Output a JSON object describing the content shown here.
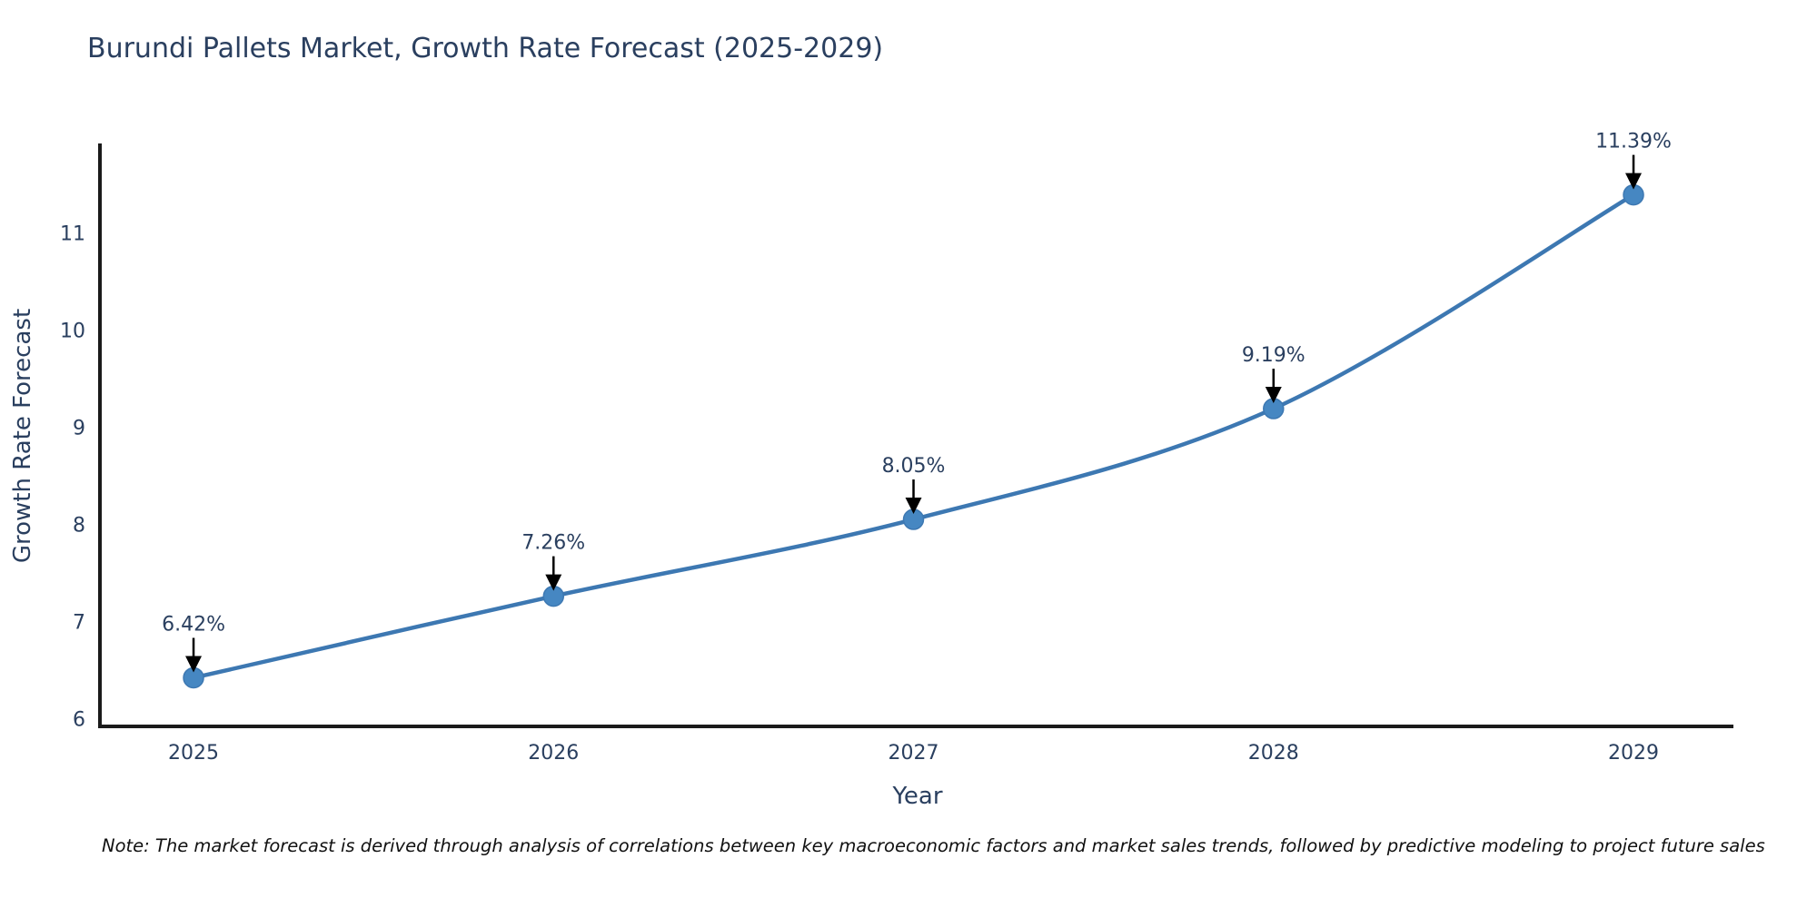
{
  "chart_data": {
    "type": "line",
    "title": "Burundi Pallets Market, Growth Rate Forecast (2025-2029)",
    "xlabel": "Year",
    "ylabel": "Growth Rate Forecast",
    "x": [
      2025,
      2026,
      2027,
      2028,
      2029
    ],
    "series": [
      {
        "name": "Growth Rate Forecast",
        "values": [
          6.42,
          7.26,
          8.05,
          9.19,
          11.39
        ],
        "point_labels": [
          "6.42%",
          "7.26%",
          "8.05%",
          "9.19%",
          "11.39%"
        ]
      }
    ],
    "x_tick_labels": [
      "2025",
      "2026",
      "2027",
      "2028",
      "2029"
    ],
    "y_tick_values": [
      6,
      7,
      8,
      9,
      10,
      11
    ],
    "xlim": [
      2024.74,
      2029.27
    ],
    "ylim": [
      5.92,
      11.9
    ],
    "grid": false,
    "legend": "none",
    "line_shape": "spline",
    "annotation_arrows": true,
    "colors": {
      "line": "#3d78b2",
      "marker": "#4687c2",
      "text": "#2a3f5f",
      "axis": "#1a1a1a",
      "arrow": "#000000"
    },
    "note": "Note: The market forecast is derived through analysis of correlations between key macroeconomic factors and market sales trends, followed by predictive modeling to project future sales"
  }
}
